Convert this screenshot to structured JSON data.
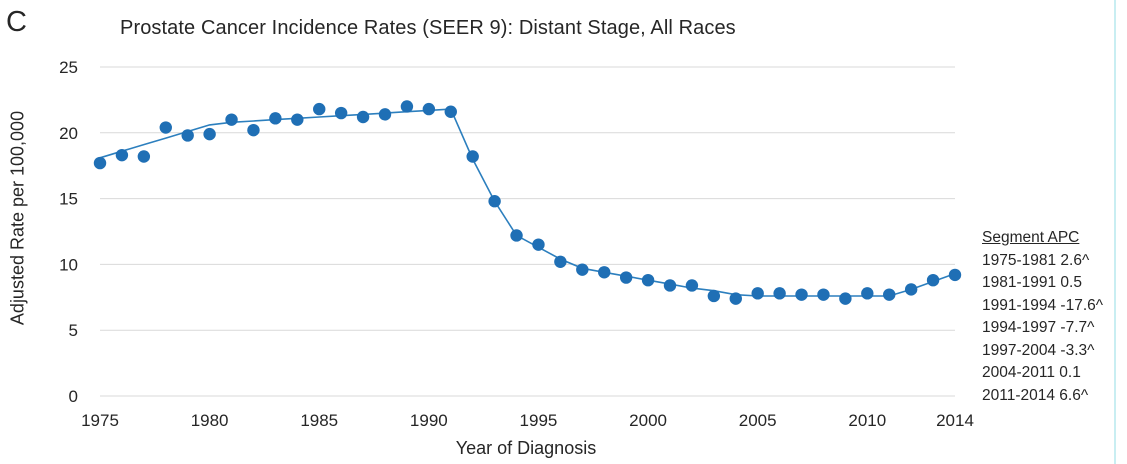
{
  "panel_letter": "C",
  "chart_data": {
    "type": "scatter",
    "title": "Prostate Cancer Incidence Rates (SEER 9): Distant Stage, All Races",
    "xlabel": "Year of Diagnosis",
    "ylabel": "Adjusted Rate per 100,000",
    "xlim": [
      1975,
      2014
    ],
    "ylim": [
      0,
      25
    ],
    "x_ticks": [
      "1975",
      "1980",
      "1985",
      "1990",
      "1995",
      "2000",
      "2005",
      "2010",
      "2014"
    ],
    "y_ticks": [
      "0",
      "5",
      "10",
      "15",
      "20",
      "25"
    ],
    "grid": "horizontal",
    "series": [
      {
        "kind": "observed",
        "marker_color": "#1f6fb5",
        "x": [
          1975,
          1976,
          1977,
          1978,
          1979,
          1980,
          1981,
          1982,
          1983,
          1984,
          1985,
          1986,
          1987,
          1988,
          1989,
          1990,
          1991,
          1992,
          1993,
          1994,
          1995,
          1996,
          1997,
          1998,
          1999,
          2000,
          2001,
          2002,
          2003,
          2004,
          2005,
          2006,
          2007,
          2008,
          2009,
          2010,
          2011,
          2012,
          2013,
          2014
        ],
        "y": [
          17.7,
          18.3,
          18.2,
          20.4,
          19.8,
          19.9,
          21.0,
          20.2,
          21.1,
          21.0,
          21.8,
          21.5,
          21.2,
          21.4,
          22.0,
          21.8,
          21.6,
          18.2,
          14.8,
          12.2,
          11.5,
          10.2,
          9.6,
          9.4,
          9.0,
          8.8,
          8.4,
          8.4,
          7.6,
          7.4,
          7.8,
          7.8,
          7.7,
          7.7,
          7.4,
          7.8,
          7.7,
          8.1,
          8.8,
          9.2
        ]
      },
      {
        "kind": "modeled",
        "line_color": "#2c7fbe",
        "x": [
          1975,
          1976,
          1977,
          1978,
          1979,
          1980,
          1981,
          1982,
          1983,
          1984,
          1985,
          1986,
          1987,
          1988,
          1989,
          1990,
          1991,
          1992,
          1993,
          1994,
          1995,
          1996,
          1997,
          1998,
          1999,
          2000,
          2001,
          2002,
          2003,
          2004,
          2005,
          2006,
          2007,
          2008,
          2009,
          2010,
          2011,
          2012,
          2013,
          2014
        ],
        "y": [
          18.1,
          18.6,
          19.1,
          19.6,
          20.1,
          20.6,
          20.8,
          20.9,
          21.0,
          21.1,
          21.2,
          21.3,
          21.4,
          21.5,
          21.6,
          21.7,
          21.8,
          18.0,
          14.8,
          12.2,
          11.3,
          10.4,
          9.7,
          9.4,
          9.1,
          8.8,
          8.5,
          8.2,
          8.0,
          7.7,
          7.6,
          7.6,
          7.6,
          7.6,
          7.6,
          7.6,
          7.6,
          8.1,
          8.7,
          9.3
        ]
      }
    ],
    "annotation": {
      "header": "Segment APC",
      "rows": [
        "1975-1981 2.6^",
        "1981-1991 0.5",
        "1991-1994 -17.6^",
        "1994-1997 -7.7^",
        "1997-2004 -3.3^",
        "2004-2011 0.1",
        "2011-2014 6.6^"
      ],
      "placement": "right"
    }
  }
}
